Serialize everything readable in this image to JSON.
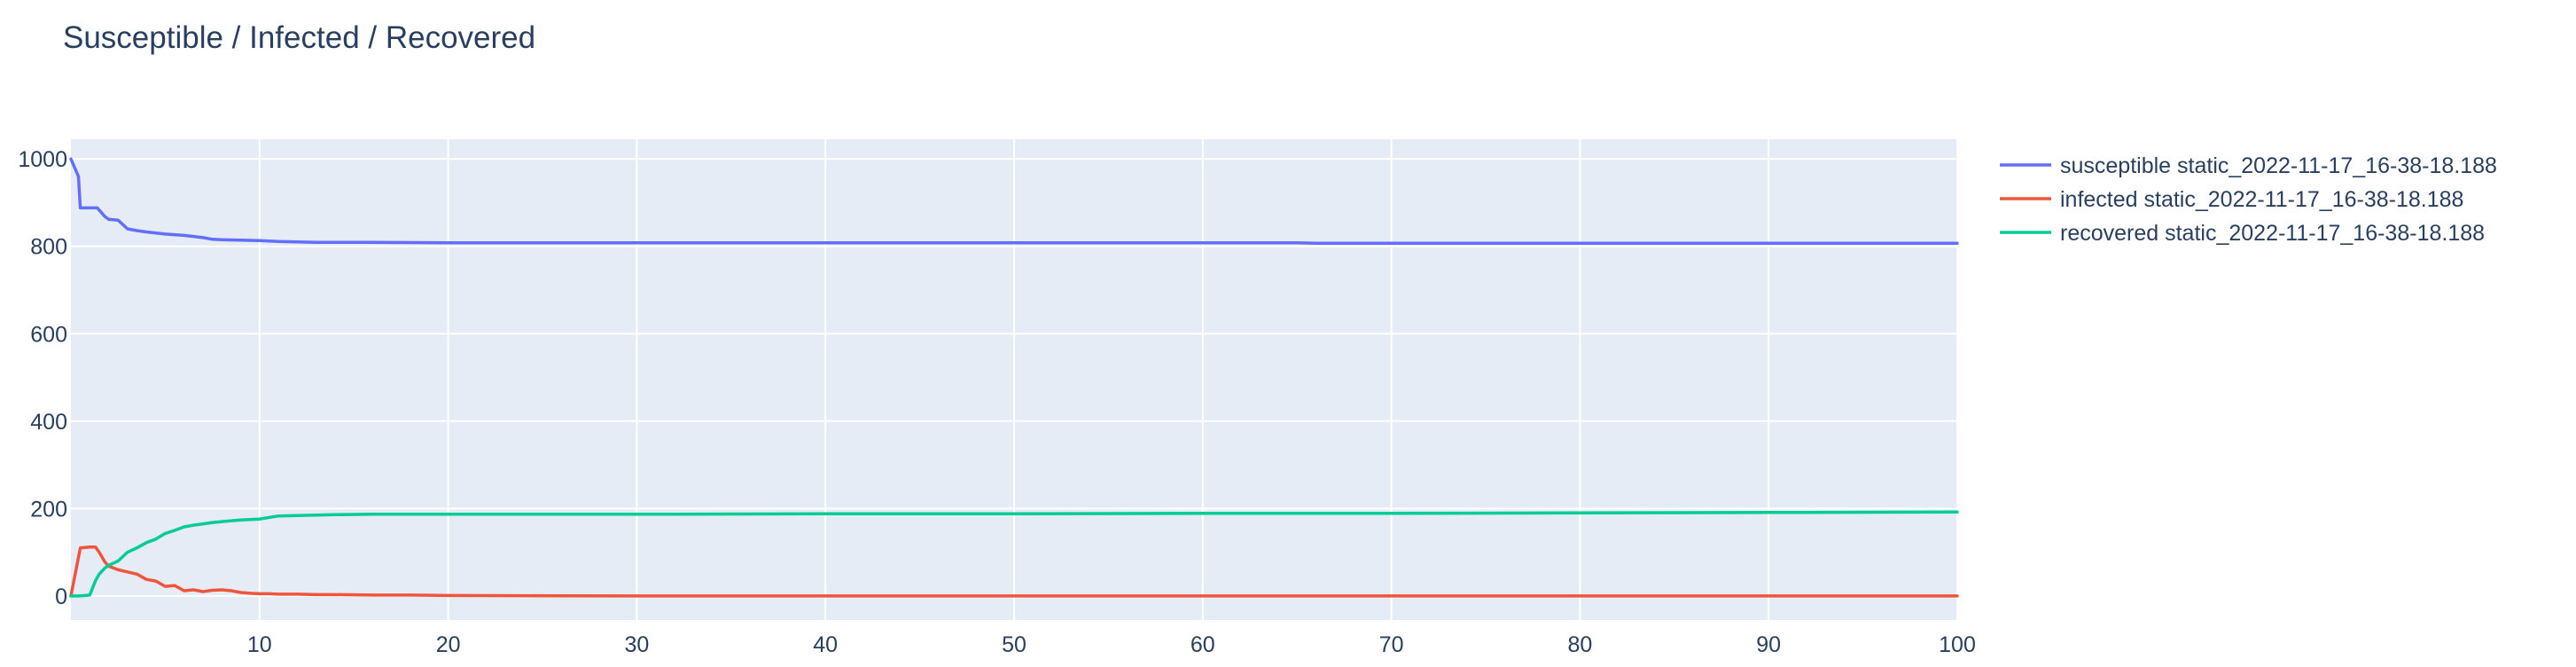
{
  "chart_data": {
    "type": "line",
    "title": "Susceptible / Infected / Recovered",
    "xlabel": "",
    "ylabel": "",
    "xlim": [
      0,
      100
    ],
    "ylim": [
      -55,
      1045
    ],
    "x_ticks": [
      10,
      20,
      30,
      40,
      50,
      60,
      70,
      80,
      90,
      100
    ],
    "y_ticks": [
      0,
      200,
      400,
      600,
      800,
      1000
    ],
    "grid": true,
    "legend_position": "top-right-outside",
    "colors": {
      "plot_background": "#e5ecf6",
      "grid": "#ffffff",
      "text": "#2a3f5f"
    },
    "series": [
      {
        "name": "susceptible static_2022-11-17_16-38-18.188",
        "color": "#636efa",
        "x": [
          0,
          0.4,
          0.5,
          1.0,
          1.4,
          1.8,
          2.0,
          2.5,
          3.0,
          3.5,
          4.0,
          5.0,
          6.0,
          7.0,
          7.5,
          8.0,
          9.0,
          10.0,
          10.5,
          11.0,
          12.0,
          13.0,
          14.0,
          16.0,
          20.0,
          30.0,
          40.0,
          50.0,
          60.0,
          65.0,
          66.0,
          70.0,
          80.0,
          90.0,
          100.0
        ],
        "y": [
          1000,
          960,
          888,
          888,
          888,
          868,
          862,
          860,
          840,
          836,
          833,
          828,
          825,
          820,
          816,
          815,
          814,
          813,
          812,
          811,
          810,
          809,
          809,
          809,
          808,
          808,
          808,
          808,
          808,
          808,
          807,
          807,
          807,
          807,
          807
        ]
      },
      {
        "name": "infected static_2022-11-17_16-38-18.188",
        "color": "#ef553b",
        "x": [
          0,
          0.5,
          1.0,
          1.3,
          1.5,
          1.8,
          2.0,
          2.5,
          3.0,
          3.5,
          4.0,
          4.5,
          5.0,
          5.5,
          6.0,
          6.5,
          7.0,
          7.5,
          8.0,
          8.5,
          9.0,
          9.5,
          10.0,
          10.5,
          11.0,
          12.0,
          13.0,
          14.0,
          16.0,
          18.0,
          20.0,
          30.0,
          40.0,
          50.0,
          60.0,
          70.0,
          80.0,
          90.0,
          100.0
        ],
        "y": [
          0,
          110,
          112,
          112,
          100,
          78,
          68,
          60,
          55,
          50,
          38,
          34,
          22,
          24,
          12,
          14,
          10,
          13,
          14,
          12,
          8,
          6,
          5,
          5,
          4,
          4,
          3,
          3,
          2,
          2,
          1,
          0,
          0,
          0,
          0,
          0,
          0,
          0,
          0
        ]
      },
      {
        "name": "recovered static_2022-11-17_16-38-18.188",
        "color": "#00cc96",
        "x": [
          0,
          0.5,
          1.0,
          1.3,
          1.5,
          1.8,
          2.0,
          2.5,
          3.0,
          3.5,
          4.0,
          4.5,
          5.0,
          5.5,
          6.0,
          6.5,
          7.0,
          7.5,
          8.0,
          9.0,
          10.0,
          11.0,
          12.0,
          13.0,
          14.0,
          16.0,
          20.0,
          30.0,
          40.0,
          50.0,
          60.0,
          70.0,
          80.0,
          90.0,
          100.0
        ],
        "y": [
          0,
          0,
          2,
          35,
          50,
          64,
          70,
          80,
          100,
          110,
          122,
          130,
          143,
          150,
          158,
          162,
          165,
          168,
          170,
          174,
          176,
          183,
          184,
          185,
          186,
          187,
          187,
          187,
          188,
          188,
          189,
          189,
          190,
          191,
          192
        ]
      }
    ]
  }
}
